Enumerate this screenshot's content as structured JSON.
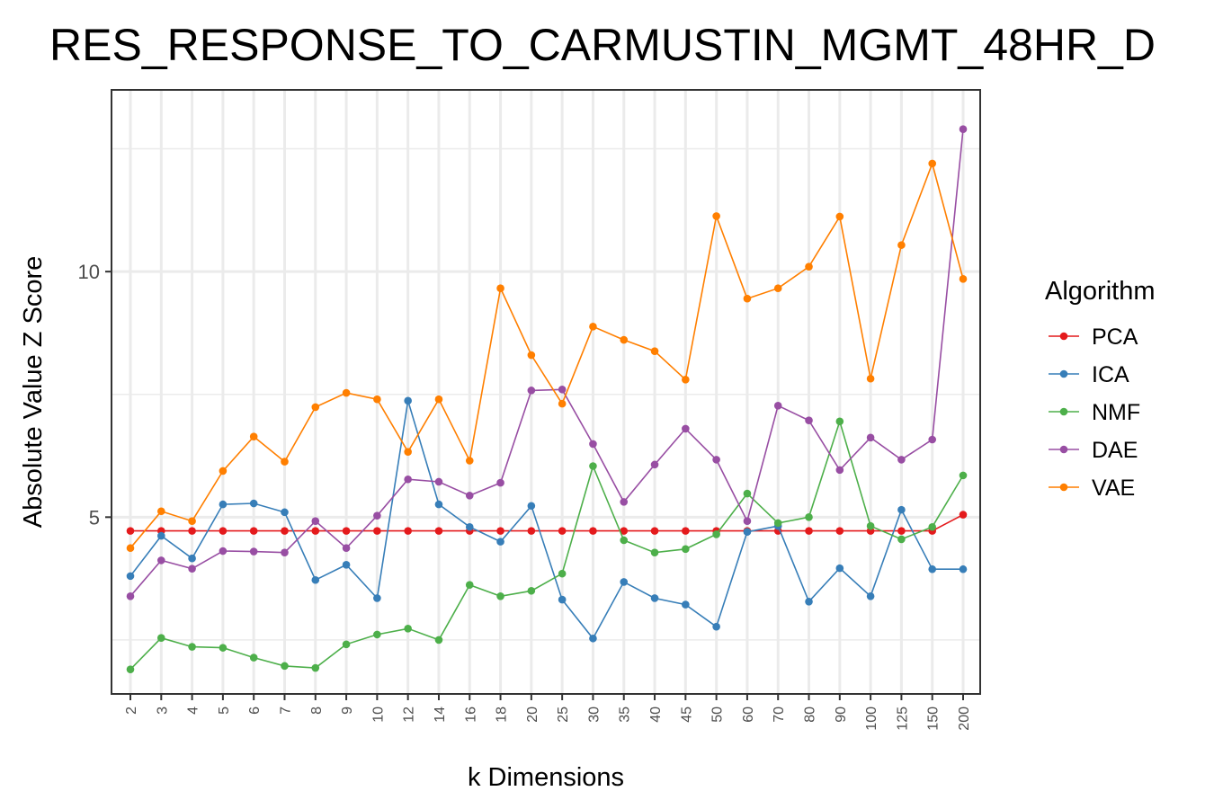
{
  "chart_data": {
    "type": "line",
    "title": "RES_RESPONSE_TO_CARMUSTIN_MGMT_48HR_D",
    "xlabel": "k Dimensions",
    "ylabel": "Absolute Value Z Score",
    "categories": [
      "2",
      "3",
      "4",
      "5",
      "6",
      "7",
      "8",
      "9",
      "10",
      "12",
      "14",
      "16",
      "18",
      "20",
      "25",
      "30",
      "35",
      "40",
      "45",
      "50",
      "60",
      "70",
      "80",
      "90",
      "100",
      "125",
      "150",
      "200"
    ],
    "yticks": [
      5,
      10
    ],
    "ylim": [
      1.4,
      13.7
    ],
    "grid": true,
    "legend": {
      "title": "Algorithm",
      "position": "right"
    },
    "series": [
      {
        "name": "PCA",
        "color": "#E41A1C",
        "values": [
          4.72,
          4.72,
          4.72,
          4.72,
          4.72,
          4.72,
          4.72,
          4.72,
          4.72,
          4.72,
          4.72,
          4.72,
          4.72,
          4.72,
          4.72,
          4.72,
          4.72,
          4.72,
          4.72,
          4.72,
          4.72,
          4.72,
          4.72,
          4.72,
          4.72,
          4.72,
          4.72,
          5.05
        ]
      },
      {
        "name": "ICA",
        "color": "#377EB8",
        "values": [
          3.8,
          4.62,
          4.16,
          5.26,
          5.28,
          5.1,
          3.72,
          4.03,
          3.35,
          7.37,
          5.26,
          4.8,
          4.5,
          5.23,
          3.32,
          2.53,
          3.68,
          3.35,
          3.22,
          2.77,
          4.7,
          4.82,
          3.28,
          3.96,
          3.39,
          5.15,
          3.94,
          3.94
        ]
      },
      {
        "name": "NMF",
        "color": "#4DAF4A",
        "values": [
          1.9,
          2.54,
          2.36,
          2.34,
          2.14,
          1.97,
          1.93,
          2.41,
          2.61,
          2.73,
          2.5,
          3.62,
          3.39,
          3.5,
          3.85,
          6.04,
          4.53,
          4.28,
          4.35,
          4.65,
          5.48,
          4.88,
          5.0,
          6.95,
          4.82,
          4.55,
          4.8,
          5.85
        ]
      },
      {
        "name": "DAE",
        "color": "#984EA3",
        "values": [
          3.39,
          4.12,
          3.95,
          4.31,
          4.3,
          4.28,
          4.92,
          4.37,
          5.03,
          5.77,
          5.72,
          5.44,
          5.7,
          7.58,
          7.6,
          6.49,
          5.31,
          6.07,
          6.8,
          6.17,
          4.92,
          7.27,
          6.97,
          5.96,
          6.62,
          6.17,
          6.58,
          12.9
        ]
      },
      {
        "name": "VAE",
        "color": "#FF7F00",
        "values": [
          4.37,
          5.12,
          4.92,
          5.94,
          6.64,
          6.13,
          7.24,
          7.53,
          7.4,
          6.33,
          7.4,
          6.15,
          9.66,
          8.3,
          7.31,
          8.88,
          8.61,
          8.38,
          7.8,
          11.13,
          9.45,
          9.66,
          10.1,
          11.12,
          7.82,
          10.54,
          12.2,
          9.85
        ]
      }
    ]
  }
}
